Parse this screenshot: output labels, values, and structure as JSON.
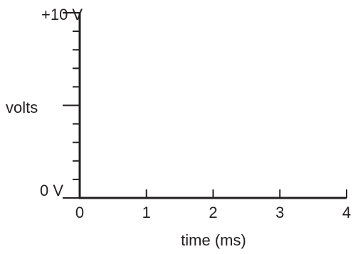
{
  "chart_data": {
    "type": "line",
    "title": "",
    "xlabel": "time (ms)",
    "ylabel": "volts",
    "xlim": [
      0,
      4
    ],
    "ylim": [
      0,
      10
    ],
    "x_ticks": [
      "0",
      "1",
      "2",
      "3",
      "4"
    ],
    "y_tick_labels": {
      "top": "+10 V",
      "bottom": "0 V"
    },
    "y_minor_tick_count": 10,
    "grid": false,
    "series": []
  },
  "colors": {
    "axis": "#231f20"
  }
}
